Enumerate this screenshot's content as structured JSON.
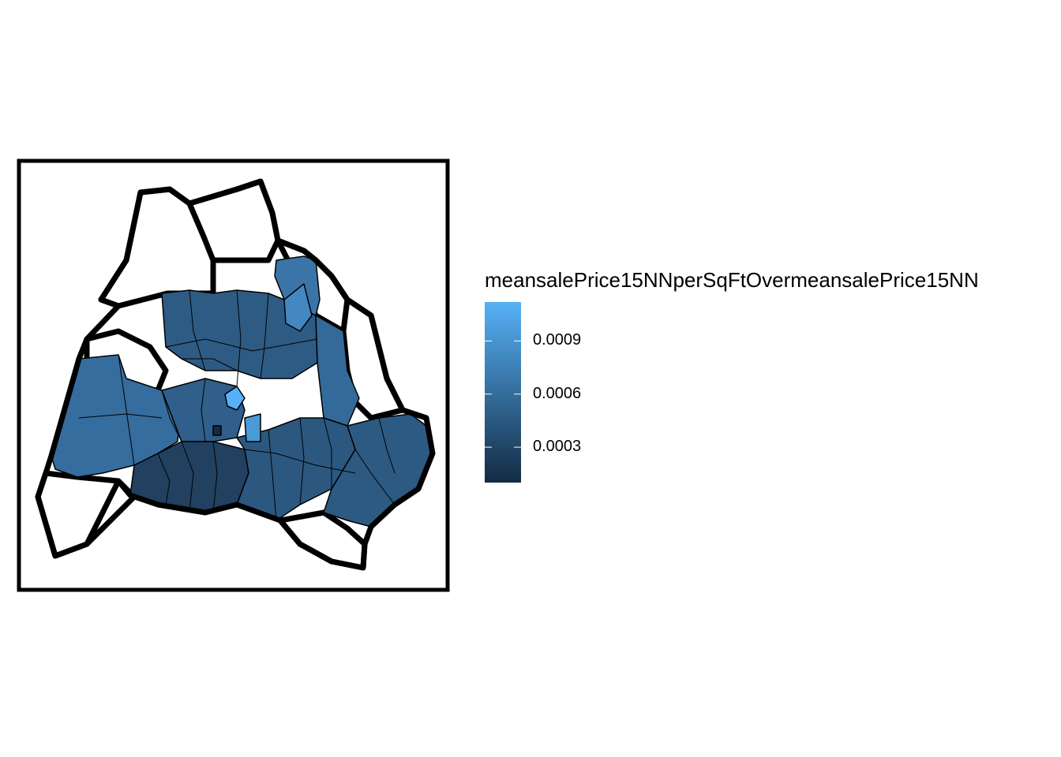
{
  "legend": {
    "title": "meansalePrice15NNperSqFtOvermeansalePrice15NN",
    "ticks": [
      {
        "label": "0.0009",
        "value": 0.0009
      },
      {
        "label": "0.0006",
        "value": 0.0006
      },
      {
        "label": "0.0003",
        "value": 0.0003
      }
    ],
    "range": [
      0.0001,
      0.00112
    ],
    "color_low": "#132b43",
    "color_high": "#56b1f7"
  },
  "map": {
    "fill_outline_color": "#000000",
    "empty_region_fill": "#ffffff"
  }
}
